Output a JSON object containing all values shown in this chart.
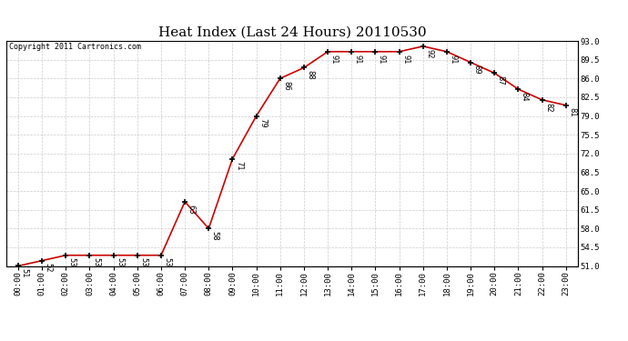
{
  "title": "Heat Index (Last 24 Hours) 20110530",
  "copyright": "Copyright 2011 Cartronics.com",
  "x_labels": [
    "00:00",
    "01:00",
    "02:00",
    "03:00",
    "04:00",
    "05:00",
    "06:00",
    "07:00",
    "08:00",
    "09:00",
    "10:00",
    "11:00",
    "12:00",
    "13:00",
    "14:00",
    "15:00",
    "16:00",
    "17:00",
    "18:00",
    "19:00",
    "20:00",
    "21:00",
    "22:00",
    "23:00"
  ],
  "y_values": [
    51,
    52,
    53,
    53,
    53,
    53,
    53,
    63,
    58,
    71,
    79,
    86,
    88,
    91,
    91,
    91,
    91,
    92,
    91,
    89,
    87,
    84,
    82,
    81
  ],
  "ylim_min": 51.0,
  "ylim_max": 93.0,
  "ytick_values": [
    51.0,
    54.5,
    58.0,
    61.5,
    65.0,
    68.5,
    72.0,
    75.5,
    79.0,
    82.5,
    86.0,
    89.5,
    93.0
  ],
  "line_color": "#cc0000",
  "marker_color": "#000000",
  "bg_color": "#ffffff",
  "grid_color": "#cccccc",
  "title_fontsize": 11,
  "tick_fontsize": 6.5,
  "annot_fontsize": 6,
  "copyright_fontsize": 6
}
